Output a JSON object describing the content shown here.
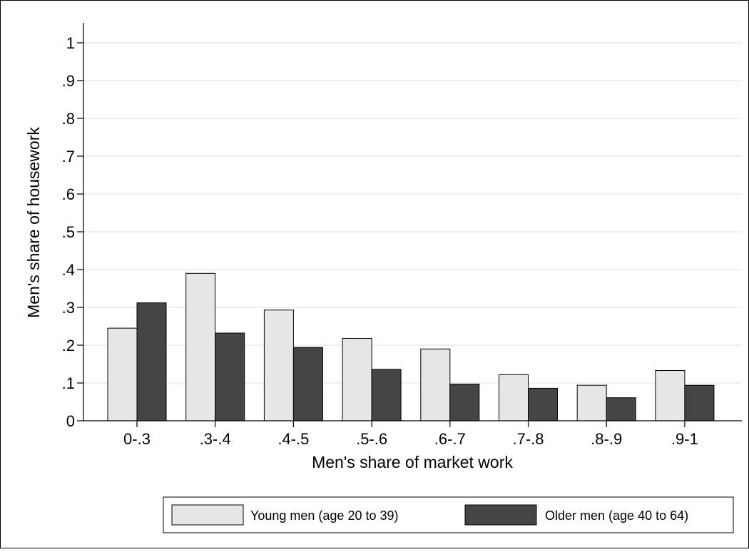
{
  "chart_data": {
    "type": "bar",
    "categories": [
      "0-.3",
      ".3-.4",
      ".4-.5",
      ".5-.6",
      ".6-.7",
      ".7-.8",
      ".8-.9",
      ".9-1"
    ],
    "series": [
      {
        "name": "Young men (age 20 to 39)",
        "values": [
          0.245,
          0.39,
          0.293,
          0.218,
          0.19,
          0.122,
          0.094,
          0.133
        ],
        "color": "#e6e6e6"
      },
      {
        "name": "Older men (age 40 to 64)",
        "values": [
          0.312,
          0.232,
          0.194,
          0.136,
          0.097,
          0.086,
          0.061,
          0.094
        ],
        "color": "#454545"
      }
    ],
    "xlabel": "Men's share of market work",
    "ylabel": "Men's share of housework",
    "ylim": [
      0,
      1
    ],
    "yticks": [
      {
        "value": 0,
        "label": "0"
      },
      {
        "value": 0.1,
        "label": ".1"
      },
      {
        "value": 0.2,
        "label": ".2"
      },
      {
        "value": 0.3,
        "label": ".3"
      },
      {
        "value": 0.4,
        "label": ".4"
      },
      {
        "value": 0.5,
        "label": ".5"
      },
      {
        "value": 0.6,
        "label": ".6"
      },
      {
        "value": 0.7,
        "label": ".7"
      },
      {
        "value": 0.8,
        "label": ".8"
      },
      {
        "value": 0.9,
        "label": ".9"
      },
      {
        "value": 1,
        "label": "1"
      }
    ],
    "grid": true,
    "gridColor": "#e3eef0",
    "legend_position": "bottom"
  }
}
